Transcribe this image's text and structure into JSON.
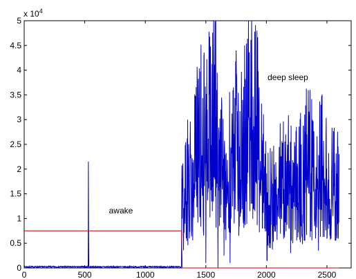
{
  "chart_data": {
    "type": "line",
    "title": "",
    "xlabel": "",
    "ylabel": "",
    "xlim": [
      0,
      2700
    ],
    "ylim": [
      0,
      50000
    ],
    "x_ticks": [
      0,
      500,
      1000,
      1500,
      2000,
      2500
    ],
    "x_tick_labels": [
      "0",
      "500",
      "1000",
      "1500",
      "2000",
      "2500"
    ],
    "y_ticks": [
      0,
      5000,
      10000,
      15000,
      20000,
      25000,
      30000,
      35000,
      40000,
      45000,
      50000
    ],
    "y_tick_labels": [
      "0",
      "0.5",
      "1",
      "1.5",
      "2",
      "2.5",
      "3",
      "3.5",
      "4",
      "4.5",
      "5"
    ],
    "y_exponent_label": "x 10",
    "y_exponent_power": "4",
    "grid": false,
    "legend": "none",
    "series": [
      {
        "color": "#0000cc",
        "description_points": {
          "baseline_x_range": [
            0,
            1300
          ],
          "baseline_value": 300,
          "spike_x": 530,
          "spike_value": 21500,
          "spike_secondary_value": 6000,
          "active_start_x": 1300,
          "active_end_x": 2600,
          "noise_seed": 7,
          "envelope_points": [
            [
              1300,
              12000
            ],
            [
              1330,
              15000
            ],
            [
              1400,
              21000
            ],
            [
              1450,
              28000
            ],
            [
              1500,
              25000
            ],
            [
              1560,
              33000
            ],
            [
              1600,
              27000
            ],
            [
              1650,
              17000
            ],
            [
              1700,
              23000
            ],
            [
              1750,
              26000
            ],
            [
              1800,
              24000
            ],
            [
              1830,
              33000
            ],
            [
              1880,
              31000
            ],
            [
              1930,
              28000
            ],
            [
              2000,
              15000
            ],
            [
              2050,
              14000
            ],
            [
              2100,
              17000
            ],
            [
              2150,
              19000
            ],
            [
              2200,
              18000
            ],
            [
              2250,
              20000
            ],
            [
              2300,
              19000
            ],
            [
              2350,
              23000
            ],
            [
              2400,
              19000
            ],
            [
              2450,
              24000
            ],
            [
              2500,
              18000
            ],
            [
              2550,
              17000
            ],
            [
              2600,
              16000
            ]
          ],
          "peaks": [
            [
              1582,
              50000
            ],
            [
              1820,
              45000
            ],
            [
              1590,
              36000
            ],
            [
              1750,
              44000
            ],
            [
              2360,
              36000
            ],
            [
              2450,
              33000
            ],
            [
              1880,
              41000
            ],
            [
              1940,
              36500
            ],
            [
              1350,
              30000
            ]
          ],
          "troughs": [
            [
              1600,
              0
            ],
            [
              1700,
              1000
            ],
            [
              2005,
              1500
            ],
            [
              1500,
              1000
            ],
            [
              2200,
              3000
            ],
            [
              2430,
              3500
            ],
            [
              1650,
              2500
            ]
          ]
        }
      },
      {
        "color": "#cc0000",
        "points": [
          [
            0,
            7500
          ],
          [
            1300,
            7500
          ],
          [
            1305,
            0
          ],
          [
            2600,
            0
          ]
        ]
      }
    ],
    "annotations": [
      {
        "text": "awake",
        "x": 700,
        "y": 11000
      },
      {
        "text": "deep sleep",
        "x": 2010,
        "y": 38000
      }
    ]
  }
}
